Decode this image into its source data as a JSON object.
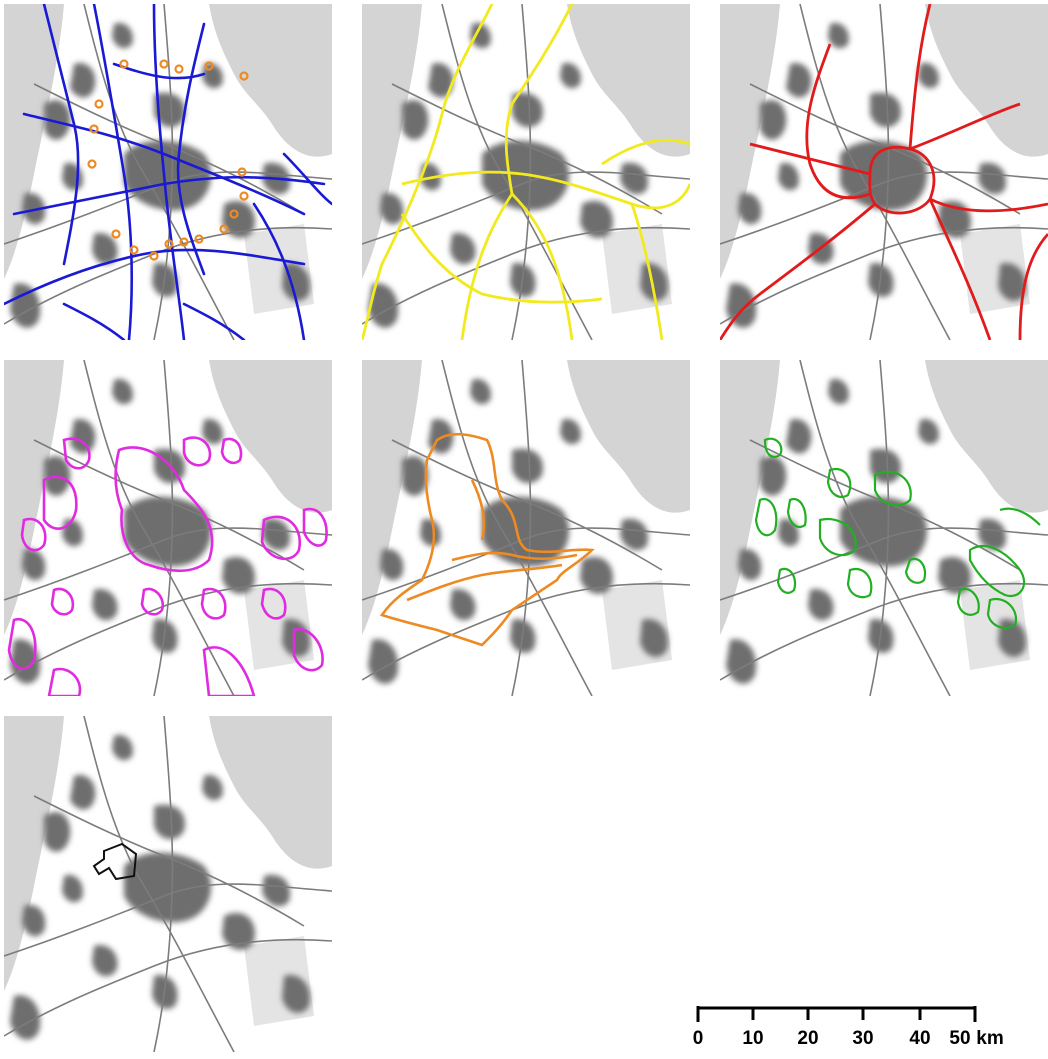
{
  "panels": [
    {
      "id": "p1",
      "overlay": "roads-network",
      "color": "#1a1ad4"
    },
    {
      "id": "p2",
      "overlay": "highways",
      "color": "#f2ea1f"
    },
    {
      "id": "p3",
      "overlay": "ring-and-radials",
      "color": "#e11b1b"
    },
    {
      "id": "p4",
      "overlay": "urban-outlines",
      "color": "#e02be0"
    },
    {
      "id": "p5",
      "overlay": "contour",
      "color": "#ee8a22"
    },
    {
      "id": "p6",
      "overlay": "green-patches",
      "color": "#22b022"
    },
    {
      "id": "p7",
      "overlay": "small-outline",
      "color": "#111111"
    }
  ],
  "scale_bar": {
    "ticks": [
      "0",
      "10",
      "20",
      "30",
      "40",
      "50"
    ],
    "unit": "km"
  },
  "colors": {
    "water": "#d4d4d4",
    "land": "#ffffff",
    "urban": "#6e6e6e",
    "road_base": "#7c7c7c"
  }
}
